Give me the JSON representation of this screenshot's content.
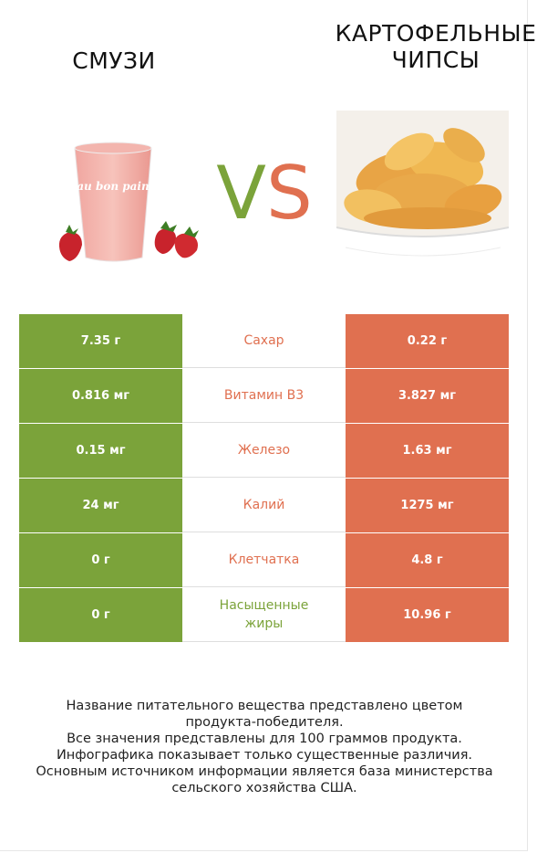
{
  "header": {
    "left_title": "СМУЗИ",
    "right_title_line1": "КАРТОФЕЛЬНЫЕ",
    "right_title_line2": "ЧИПСЫ",
    "vs_v": "V",
    "vs_s": "S"
  },
  "images": {
    "left_cup_text": "au bon pain"
  },
  "colors": {
    "winner_left": "#7ba33a",
    "winner_right": "#e07050"
  },
  "rows": [
    {
      "left": "7.35 г",
      "label": "Сахар",
      "right": "0.22 г",
      "winner": "right",
      "winner_color": "#e07050"
    },
    {
      "left": "0.816 мг",
      "label": "Витамин B3",
      "right": "3.827 мг",
      "winner": "right",
      "winner_color": "#e07050"
    },
    {
      "left": "0.15 мг",
      "label": "Железо",
      "right": "1.63 мг",
      "winner": "right",
      "winner_color": "#e07050"
    },
    {
      "left": "24 мг",
      "label": "Калий",
      "right": "1275 мг",
      "winner": "right",
      "winner_color": "#e07050"
    },
    {
      "left": "0 г",
      "label": "Клетчатка",
      "right": "4.8 г",
      "winner": "right",
      "winner_color": "#e07050"
    },
    {
      "left": "0 г",
      "label": "Насыщенные жиры",
      "right": "10.96 г",
      "winner": "left",
      "winner_color": "#7ba33a"
    }
  ],
  "footer": {
    "line1": "Название питательного вещества представлено цветом",
    "line2": "продукта-победителя.",
    "line3": "Все значения представлены для 100 граммов продукта.",
    "line4": "Инфографика показывает только существенные различия.",
    "line5": "Основным источником информации является база министерства",
    "line6": "сельского хозяйства США."
  }
}
